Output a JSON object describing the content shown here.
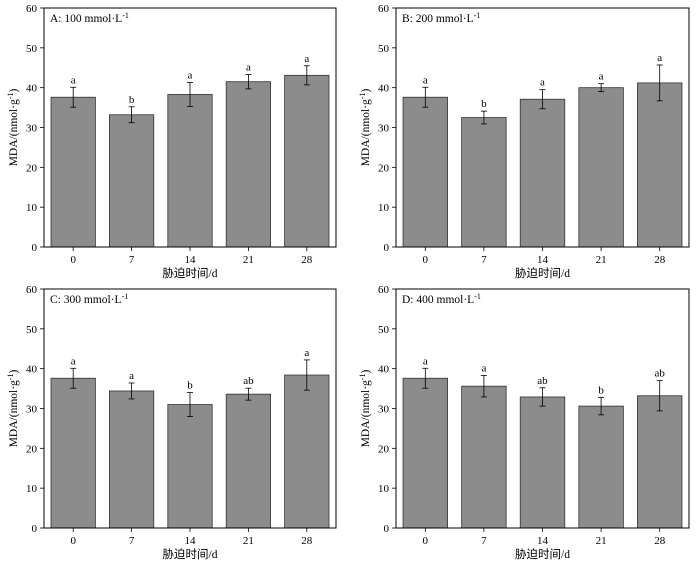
{
  "chart_data": [
    {
      "type": "bar",
      "title": "A: 100 mmol·L",
      "title_sup": "-1",
      "xlabel": "胁迫时间/d",
      "ylabel": "MDA/(nmol·g",
      "ylabel_sup": "-1",
      "ylabel_end": ")",
      "categories": [
        "0",
        "7",
        "14",
        "21",
        "28"
      ],
      "values": [
        37.6,
        33.2,
        38.3,
        41.5,
        43.1
      ],
      "errors": [
        2.5,
        2.0,
        3.0,
        1.8,
        2.4
      ],
      "letters": [
        "a",
        "b",
        "a",
        "a",
        "a"
      ],
      "ylim": [
        0,
        60
      ],
      "yticks": [
        "0",
        "10",
        "20",
        "30",
        "40",
        "50",
        "60"
      ],
      "bar_color": "#8c8c8c"
    },
    {
      "type": "bar",
      "title": "B: 200 mmol·L",
      "title_sup": "-1",
      "xlabel": "胁迫时间/d",
      "ylabel": "MDA/(nmol·g",
      "ylabel_sup": "-1",
      "ylabel_end": ")",
      "categories": [
        "0",
        "7",
        "14",
        "21",
        "28"
      ],
      "values": [
        37.6,
        32.5,
        37.1,
        40.0,
        41.2
      ],
      "errors": [
        2.5,
        1.6,
        2.4,
        1.0,
        4.5
      ],
      "letters": [
        "a",
        "b",
        "a",
        "a",
        "a"
      ],
      "ylim": [
        0,
        60
      ],
      "yticks": [
        "0",
        "10",
        "20",
        "30",
        "40",
        "50",
        "60"
      ],
      "bar_color": "#8c8c8c"
    },
    {
      "type": "bar",
      "title": "C: 300 mmol·L",
      "title_sup": "-1",
      "xlabel": "胁迫时间/d",
      "ylabel": "MDA/(nmol·g",
      "ylabel_sup": "-1",
      "ylabel_end": ")",
      "categories": [
        "0",
        "7",
        "14",
        "21",
        "28"
      ],
      "values": [
        37.6,
        34.4,
        31.0,
        33.6,
        38.4
      ],
      "errors": [
        2.5,
        2.0,
        3.0,
        1.5,
        3.8
      ],
      "letters": [
        "a",
        "a",
        "b",
        "ab",
        "a"
      ],
      "ylim": [
        0,
        60
      ],
      "yticks": [
        "0",
        "10",
        "20",
        "30",
        "40",
        "50",
        "60"
      ],
      "bar_color": "#8c8c8c"
    },
    {
      "type": "bar",
      "title": "D: 400 mmol·L",
      "title_sup": "-1",
      "xlabel": "胁迫时间/d",
      "ylabel": "MDA/(nmol·g",
      "ylabel_sup": "-1",
      "ylabel_end": ")",
      "categories": [
        "0",
        "7",
        "14",
        "21",
        "28"
      ],
      "values": [
        37.6,
        35.6,
        32.9,
        30.6,
        33.2
      ],
      "errors": [
        2.5,
        2.7,
        2.3,
        2.2,
        3.8
      ],
      "letters": [
        "a",
        "a",
        "ab",
        "b",
        "ab"
      ],
      "ylim": [
        0,
        60
      ],
      "yticks": [
        "0",
        "10",
        "20",
        "30",
        "40",
        "50",
        "60"
      ],
      "bar_color": "#8c8c8c"
    }
  ]
}
